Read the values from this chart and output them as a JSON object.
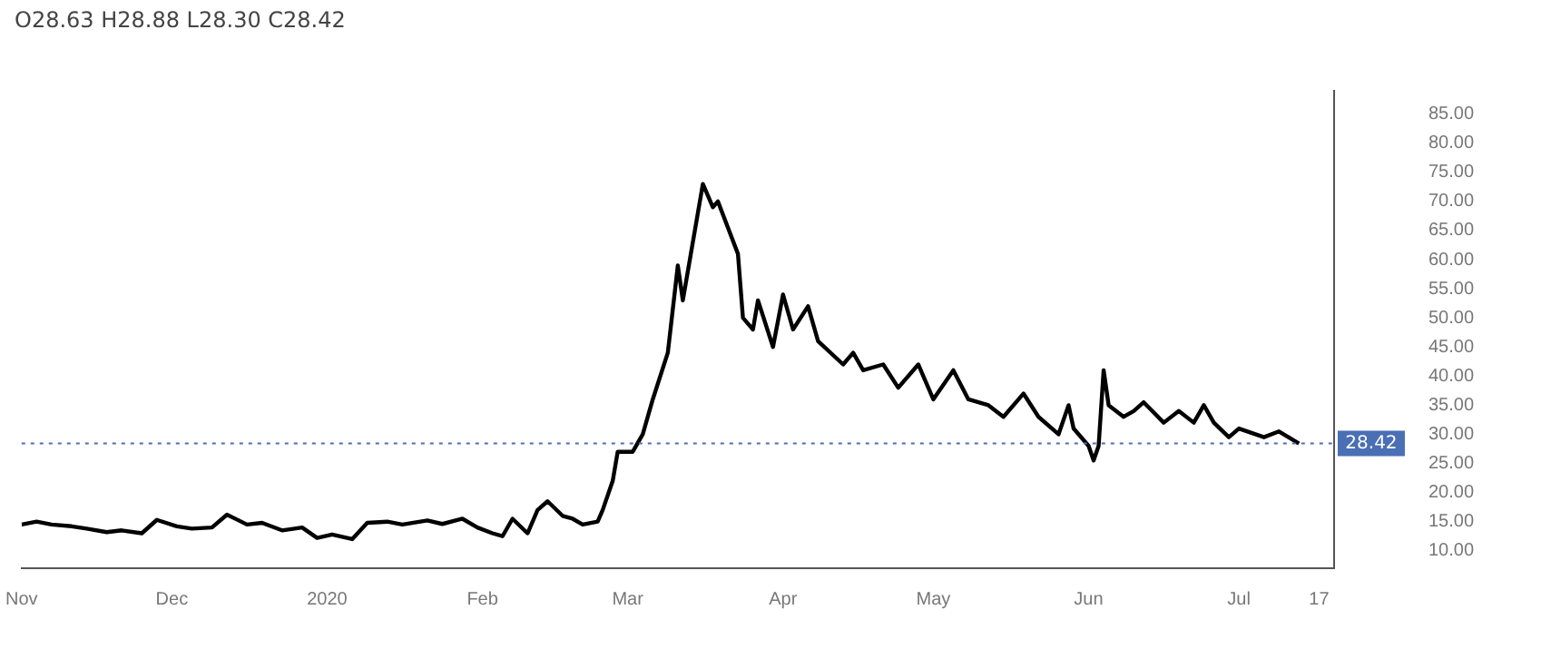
{
  "chart_data": {
    "type": "line",
    "annotations": [
      "O28.63  H28.88  L28.30  C28.42"
    ],
    "x": [
      "2019-11-01",
      "2019-11-04",
      "2019-11-07",
      "2019-11-11",
      "2019-11-14",
      "2019-11-18",
      "2019-11-21",
      "2019-11-25",
      "2019-11-28",
      "2019-12-02",
      "2019-12-05",
      "2019-12-09",
      "2019-12-12",
      "2019-12-16",
      "2019-12-19",
      "2019-12-23",
      "2019-12-27",
      "2019-12-30",
      "2020-01-02",
      "2020-01-06",
      "2020-01-09",
      "2020-01-13",
      "2020-01-16",
      "2020-01-21",
      "2020-01-24",
      "2020-01-28",
      "2020-01-31",
      "2020-02-03",
      "2020-02-05",
      "2020-02-07",
      "2020-02-10",
      "2020-02-12",
      "2020-02-14",
      "2020-02-17",
      "2020-02-19",
      "2020-02-21",
      "2020-02-24",
      "2020-02-25",
      "2020-02-27",
      "2020-02-28",
      "2020-03-02",
      "2020-03-04",
      "2020-03-06",
      "2020-03-09",
      "2020-03-11",
      "2020-03-12",
      "2020-03-16",
      "2020-03-18",
      "2020-03-19",
      "2020-03-23",
      "2020-03-24",
      "2020-03-26",
      "2020-03-27",
      "2020-03-30",
      "2020-04-01",
      "2020-04-03",
      "2020-04-06",
      "2020-04-08",
      "2020-04-13",
      "2020-04-15",
      "2020-04-17",
      "2020-04-21",
      "2020-04-24",
      "2020-04-28",
      "2020-05-01",
      "2020-05-05",
      "2020-05-08",
      "2020-05-12",
      "2020-05-15",
      "2020-05-19",
      "2020-05-22",
      "2020-05-26",
      "2020-05-28",
      "2020-05-29",
      "2020-06-01",
      "2020-06-02",
      "2020-06-03",
      "2020-06-04",
      "2020-06-05",
      "2020-06-08",
      "2020-06-10",
      "2020-06-12",
      "2020-06-16",
      "2020-06-19",
      "2020-06-22",
      "2020-06-24",
      "2020-06-26",
      "2020-06-29",
      "2020-07-01",
      "2020-07-06",
      "2020-07-09",
      "2020-07-13"
    ],
    "series": [
      {
        "color": "#000000",
        "values": [
          14.5,
          15,
          14.5,
          14.2,
          13.8,
          13.2,
          13.5,
          13,
          15.3,
          14.2,
          13.8,
          14,
          16.2,
          14.5,
          14.8,
          13.5,
          14,
          12.2,
          12.8,
          12,
          14.8,
          15,
          14.5,
          15.2,
          14.6,
          15.5,
          14,
          13,
          12.5,
          15.5,
          13,
          17,
          18.5,
          16,
          15.5,
          14.5,
          15,
          17,
          22,
          27,
          27,
          30,
          36,
          44,
          59,
          53,
          73,
          69,
          70,
          61,
          50,
          48,
          53,
          45,
          54,
          48,
          52,
          46,
          42,
          44,
          41,
          42,
          38,
          42,
          36,
          41,
          36,
          35,
          33,
          37,
          33,
          30,
          35,
          31,
          28,
          25.5,
          28,
          41,
          35,
          33,
          34,
          35.5,
          32,
          34,
          32,
          35,
          32,
          29.5,
          31,
          29.5,
          30.5,
          28.4
        ]
      }
    ],
    "xlim": [
      "2019-11-01",
      "2020-07-20"
    ],
    "xticks": [
      {
        "value": "2019-11-01",
        "label": "Nov"
      },
      {
        "value": "2019-12-01",
        "label": "Dec"
      },
      {
        "value": "2020-01-01",
        "label": "2020"
      },
      {
        "value": "2020-02-01",
        "label": "Feb"
      },
      {
        "value": "2020-03-01",
        "label": "Mar"
      },
      {
        "value": "2020-04-01",
        "label": "Apr"
      },
      {
        "value": "2020-05-01",
        "label": "May"
      },
      {
        "value": "2020-06-01",
        "label": "Jun"
      },
      {
        "value": "2020-07-01",
        "label": "Jul"
      },
      {
        "value": "2020-07-17",
        "label": "17"
      }
    ],
    "ylim": [
      7,
      89
    ],
    "yticks": [
      {
        "value": 10,
        "label": "10.00"
      },
      {
        "value": 15,
        "label": "15.00"
      },
      {
        "value": 20,
        "label": "20.00"
      },
      {
        "value": 25,
        "label": "25.00"
      },
      {
        "value": 30,
        "label": "30.00"
      },
      {
        "value": 35,
        "label": "35.00"
      },
      {
        "value": 40,
        "label": "40.00"
      },
      {
        "value": 45,
        "label": "45.00"
      },
      {
        "value": 50,
        "label": "50.00"
      },
      {
        "value": 55,
        "label": "55.00"
      },
      {
        "value": 60,
        "label": "60.00"
      },
      {
        "value": 65,
        "label": "65.00"
      },
      {
        "value": 70,
        "label": "70.00"
      },
      {
        "value": 75,
        "label": "75.00"
      },
      {
        "value": 80,
        "label": "80.00"
      },
      {
        "value": 85,
        "label": "85.00"
      }
    ],
    "ref_lines": [
      {
        "axis": "y",
        "value": 28.42,
        "label": "28.42",
        "color": "#4a6fb5",
        "line_style": "dotted"
      }
    ],
    "grid": false,
    "marker": "none",
    "line_style": "solid"
  }
}
